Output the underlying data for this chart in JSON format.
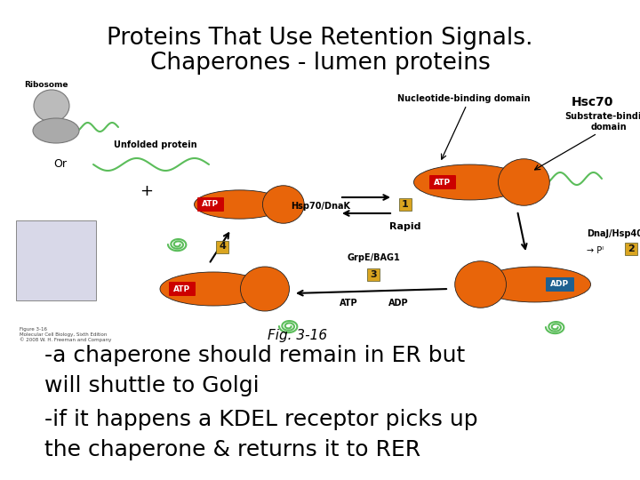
{
  "title_line1": "Proteins That Use Retention Signals.",
  "title_line2": "Chaperones - lumen proteins",
  "fig_label": "Fig. 3-16",
  "hsc70_label": "Hsc70",
  "body_text_line1": "-a chaperone should remain in ER but",
  "body_text_line2": "will shuttle to Golgi",
  "body_text_line3": "-if it happens a KDEL receptor picks up",
  "body_text_line4": "the chaperone & returns it to RER",
  "background_color": "#ffffff",
  "title_fontsize": 19,
  "body_fontsize": 18,
  "fig_label_fontsize": 11,
  "hsc70_fontsize": 10,
  "title_color": "#000000",
  "body_color": "#000000",
  "fig_label_color": "#000000",
  "hsc70_color": "#000000",
  "orange_color": "#E8650A",
  "atp_red": "#CC0000",
  "adp_blue": "#1E6090",
  "step_color": "#8B6914",
  "step_bg": "#DAA520",
  "green_protein": "#5BBD5A",
  "arrow_color": "#111111"
}
